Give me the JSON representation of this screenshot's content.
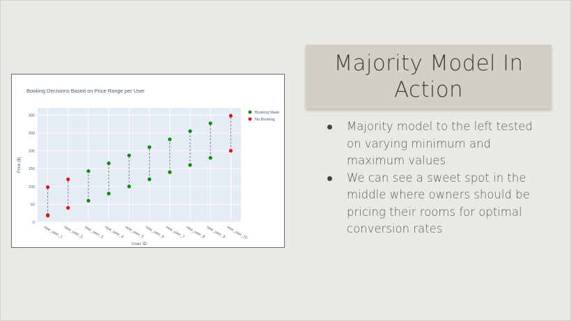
{
  "slide": {
    "title": "Majority Model In Action",
    "bullets": [
      "Majority model to the left tested on varying minimum and maximum values",
      "We can see a sweet spot in the middle where owners should be pricing their rooms for optimal conversion rates"
    ]
  },
  "chart_data": {
    "type": "scatter",
    "title": "Booking Decisions Based on Price Range per User",
    "xlabel": "User ID",
    "ylabel": "Price ($)",
    "categories": [
      "new_user_1",
      "new_user_2",
      "new_user_3",
      "new_user_4",
      "new_user_5",
      "new_user_6",
      "new_user_7",
      "new_user_8",
      "new_user_9",
      "new_user_10"
    ],
    "ylim": [
      0,
      320
    ],
    "yticks": [
      0,
      50,
      100,
      150,
      200,
      250,
      300
    ],
    "legend_position": "top-right",
    "grid": true,
    "colors": {
      "booking_made": "#0a8a0a",
      "no_booking": "#e81010",
      "connector": "#7a7a95",
      "plot_bg": "#e5ecf6"
    },
    "series": [
      {
        "name": "Booking Made",
        "points": [
          {
            "x": "new_user_1",
            "y": 20
          },
          {
            "x": "new_user_3",
            "y": 60
          },
          {
            "x": "new_user_3",
            "y": 143
          },
          {
            "x": "new_user_4",
            "y": 80
          },
          {
            "x": "new_user_4",
            "y": 165
          },
          {
            "x": "new_user_5",
            "y": 100
          },
          {
            "x": "new_user_5",
            "y": 187
          },
          {
            "x": "new_user_6",
            "y": 120
          },
          {
            "x": "new_user_6",
            "y": 210
          },
          {
            "x": "new_user_7",
            "y": 140
          },
          {
            "x": "new_user_7",
            "y": 232
          },
          {
            "x": "new_user_8",
            "y": 160
          },
          {
            "x": "new_user_8",
            "y": 255
          },
          {
            "x": "new_user_9",
            "y": 180
          },
          {
            "x": "new_user_9",
            "y": 277
          }
        ]
      },
      {
        "name": "No Booking",
        "points": [
          {
            "x": "new_user_1",
            "y": 18
          },
          {
            "x": "new_user_1",
            "y": 98
          },
          {
            "x": "new_user_2",
            "y": 40
          },
          {
            "x": "new_user_2",
            "y": 120
          },
          {
            "x": "new_user_10",
            "y": 200
          },
          {
            "x": "new_user_10",
            "y": 298
          }
        ]
      }
    ],
    "ranges": [
      {
        "x": "new_user_1",
        "min": 20,
        "max": 98
      },
      {
        "x": "new_user_2",
        "min": 40,
        "max": 120
      },
      {
        "x": "new_user_3",
        "min": 60,
        "max": 143
      },
      {
        "x": "new_user_4",
        "min": 80,
        "max": 165
      },
      {
        "x": "new_user_5",
        "min": 100,
        "max": 187
      },
      {
        "x": "new_user_6",
        "min": 120,
        "max": 210
      },
      {
        "x": "new_user_7",
        "min": 140,
        "max": 232
      },
      {
        "x": "new_user_8",
        "min": 160,
        "max": 255
      },
      {
        "x": "new_user_9",
        "min": 180,
        "max": 277
      },
      {
        "x": "new_user_10",
        "min": 200,
        "max": 298
      }
    ]
  }
}
